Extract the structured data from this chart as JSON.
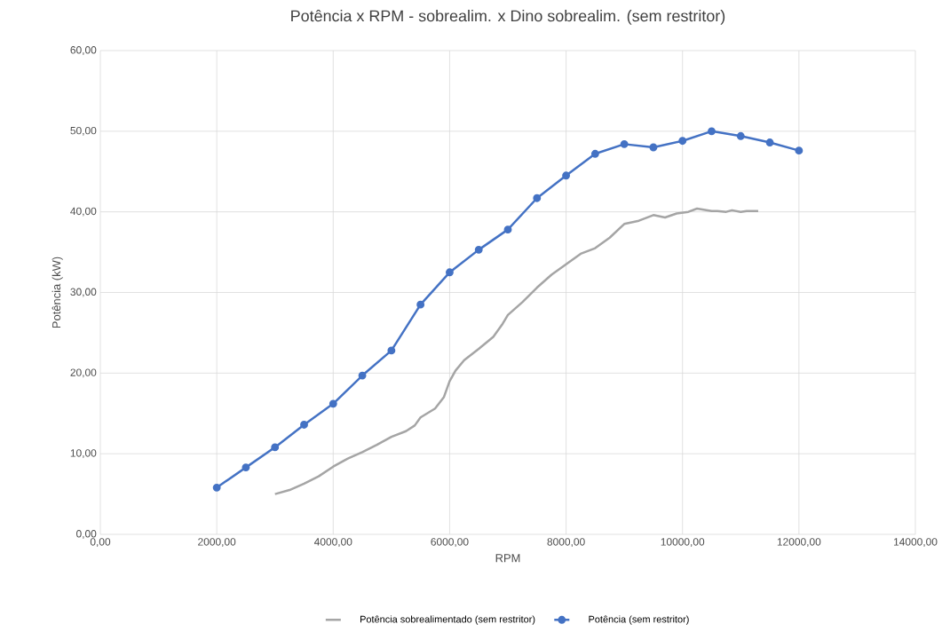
{
  "chart_data": {
    "type": "line",
    "title": "Potência x RPM - sobrealim. x Dino sobrealim. (sem restritor)",
    "xlabel": "RPM",
    "ylabel": "Potência (kW)",
    "xlim": [
      0,
      14000
    ],
    "ylim": [
      0,
      60
    ],
    "xticks": [
      {
        "value": 0,
        "label": "0,00"
      },
      {
        "value": 2000,
        "label": "2000,00"
      },
      {
        "value": 4000,
        "label": "4000,00"
      },
      {
        "value": 6000,
        "label": "6000,00"
      },
      {
        "value": 8000,
        "label": "8000,00"
      },
      {
        "value": 10000,
        "label": "10000,00"
      },
      {
        "value": 12000,
        "label": "12000,00"
      },
      {
        "value": 14000,
        "label": "14000,00"
      }
    ],
    "yticks": [
      {
        "value": 0,
        "label": "0,00"
      },
      {
        "value": 10,
        "label": "10,00"
      },
      {
        "value": 20,
        "label": "20,00"
      },
      {
        "value": 30,
        "label": "30,00"
      },
      {
        "value": 40,
        "label": "40,00"
      },
      {
        "value": 50,
        "label": "50,00"
      },
      {
        "value": 60,
        "label": "60,00"
      }
    ],
    "grid": true,
    "legend": "bottom",
    "series": [
      {
        "name": "Potência sobrealimentado (sem restritor)",
        "color": "#a5a5a5",
        "marker": "none",
        "x": [
          3000,
          3250,
          3500,
          3750,
          4000,
          4250,
          4500,
          4750,
          5000,
          5250,
          5400,
          5500,
          5750,
          5900,
          6000,
          6100,
          6250,
          6500,
          6750,
          6900,
          7000,
          7250,
          7500,
          7750,
          8000,
          8250,
          8500,
          8750,
          9000,
          9250,
          9500,
          9700,
          9900,
          10100,
          10250,
          10500,
          10600,
          10750,
          10850,
          11000,
          11100,
          11300
        ],
        "values": [
          5.0,
          5.5,
          6.3,
          7.2,
          8.4,
          9.4,
          10.2,
          11.1,
          12.1,
          12.8,
          13.5,
          14.5,
          15.6,
          17.0,
          19.0,
          20.3,
          21.6,
          23.0,
          24.5,
          26.0,
          27.2,
          28.8,
          30.6,
          32.2,
          33.5,
          34.8,
          35.5,
          36.8,
          38.5,
          38.9,
          39.6,
          39.3,
          39.8,
          40.0,
          40.4,
          40.1,
          40.1,
          40.0,
          40.2,
          40.0,
          40.1,
          40.1
        ]
      },
      {
        "name": "Potência (sem restritor)",
        "color": "#4472c4",
        "marker": "circle",
        "x": [
          2000,
          2500,
          3000,
          3500,
          4000,
          4500,
          5000,
          5500,
          6000,
          6500,
          7000,
          7500,
          8000,
          8500,
          9000,
          9500,
          10000,
          10500,
          11000,
          11500,
          12000
        ],
        "values": [
          5.8,
          8.3,
          10.8,
          13.6,
          16.2,
          19.7,
          22.8,
          28.5,
          32.5,
          35.3,
          37.8,
          41.7,
          44.5,
          47.2,
          48.4,
          48.0,
          48.8,
          50.0,
          49.4,
          48.6,
          47.6
        ]
      }
    ]
  }
}
